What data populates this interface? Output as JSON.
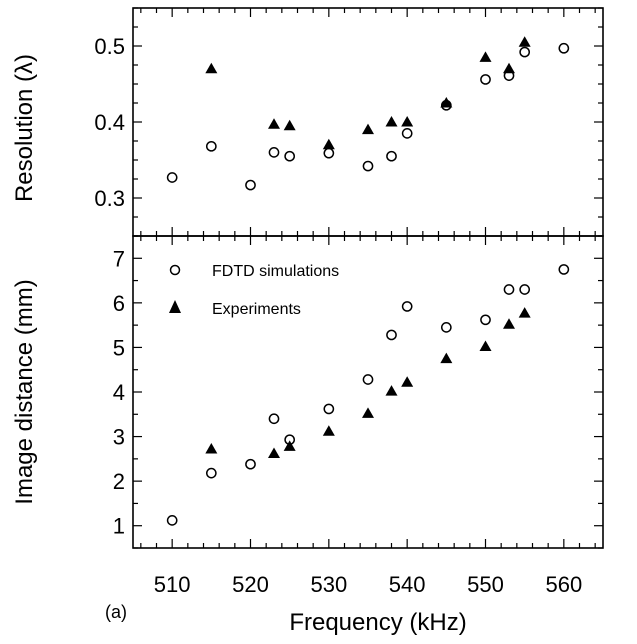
{
  "chart_data": [
    {
      "type": "scatter",
      "panel": "top",
      "ylabel": "Resolution (λ)",
      "xlim": [
        505,
        565
      ],
      "ylim": [
        0.25,
        0.55
      ],
      "yticks": [
        "0.3",
        "0.4",
        "0.5"
      ],
      "series": [
        {
          "marker": "open-circle",
          "x": [
            510,
            515,
            520,
            523,
            525,
            530,
            535,
            538,
            540,
            545,
            550,
            553,
            555,
            560
          ],
          "y": [
            0.327,
            0.368,
            0.317,
            0.36,
            0.355,
            0.359,
            0.342,
            0.355,
            0.385,
            0.422,
            0.456,
            0.461,
            0.492,
            0.497
          ]
        },
        {
          "marker": "filled-triangle",
          "x": [
            515,
            523,
            525,
            530,
            535,
            538,
            540,
            545,
            550,
            553,
            555
          ],
          "y": [
            0.47,
            0.397,
            0.395,
            0.37,
            0.39,
            0.4,
            0.4,
            0.425,
            0.485,
            0.47,
            0.505
          ]
        }
      ]
    },
    {
      "type": "scatter",
      "panel": "bottom",
      "xlabel": "Frequency (kHz)",
      "ylabel": "Image distance (mm)",
      "xlim": [
        505,
        565
      ],
      "ylim": [
        0.5,
        7.5
      ],
      "xticks": [
        "510",
        "520",
        "530",
        "540",
        "550",
        "560"
      ],
      "yticks": [
        "1",
        "2",
        "3",
        "4",
        "5",
        "6",
        "7"
      ],
      "legend_position": "top-left",
      "series": [
        {
          "name": "FDTD simulations",
          "marker": "open-circle",
          "x": [
            510,
            515,
            520,
            523,
            525,
            530,
            535,
            538,
            540,
            545,
            550,
            553,
            555,
            560
          ],
          "y": [
            1.12,
            2.18,
            2.38,
            3.4,
            2.93,
            3.62,
            4.28,
            5.28,
            5.92,
            5.45,
            5.62,
            6.3,
            6.3,
            6.75
          ]
        },
        {
          "name": "Experiments",
          "marker": "filled-triangle",
          "x": [
            515,
            523,
            525,
            530,
            535,
            538,
            540,
            545,
            550,
            553,
            555
          ],
          "y": [
            2.72,
            2.62,
            2.78,
            3.12,
            3.52,
            4.02,
            4.22,
            4.75,
            5.02,
            5.52,
            5.77
          ]
        }
      ]
    }
  ],
  "panel_tag": "(a)"
}
